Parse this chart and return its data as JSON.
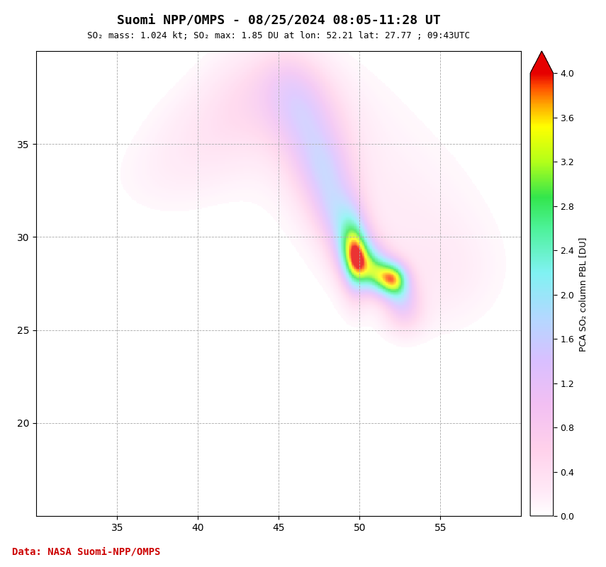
{
  "title": "Suomi NPP/OMPS - 08/25/2024 08:05-11:28 UT",
  "subtitle": "SO₂ mass: 1.024 kt; SO₂ max: 1.85 DU at lon: 52.21 lat: 27.77 ; 09:43UTC",
  "data_credit": "Data: NASA Suomi-NPP/OMPS",
  "lon_min": 30,
  "lon_max": 60,
  "lat_min": 15,
  "lat_max": 40,
  "lon_ticks": [
    35,
    40,
    45,
    50,
    55
  ],
  "lat_ticks": [
    20,
    25,
    30,
    35
  ],
  "cbar_label": "PCA SO₂ column PBL [DU]",
  "cbar_min": 0.0,
  "cbar_max": 4.0,
  "cbar_ticks": [
    0.0,
    0.4,
    0.8,
    1.2,
    1.6,
    2.0,
    2.4,
    2.8,
    3.2,
    3.6,
    4.0
  ],
  "land_color": "#ffffff",
  "ocean_color": "#ffffff",
  "coast_color": "#000000",
  "border_color": "#000000",
  "grid_color": "#aaaaaa",
  "background_color": "#ffffff",
  "title_fontsize": 13,
  "subtitle_fontsize": 9,
  "credit_color": "#cc0000",
  "so2_peak_lon": 52.21,
  "so2_peak_lat": 27.77,
  "so2_max": 1.85,
  "plume_blobs": [
    {
      "lon": 45.5,
      "lat": 39.0,
      "slon": 1.2,
      "slat": 1.0,
      "amp": 0.25
    },
    {
      "lon": 46.0,
      "lat": 38.0,
      "slon": 1.5,
      "slat": 1.2,
      "amp": 0.28
    },
    {
      "lon": 46.2,
      "lat": 37.0,
      "slon": 1.4,
      "slat": 1.3,
      "amp": 0.32
    },
    {
      "lon": 46.5,
      "lat": 36.5,
      "slon": 1.5,
      "slat": 1.5,
      "amp": 0.35
    },
    {
      "lon": 47.0,
      "lat": 35.5,
      "slon": 1.5,
      "slat": 1.5,
      "amp": 0.4
    },
    {
      "lon": 47.5,
      "lat": 34.5,
      "slon": 1.3,
      "slat": 1.3,
      "amp": 0.45
    },
    {
      "lon": 47.8,
      "lat": 33.5,
      "slon": 1.2,
      "slat": 1.2,
      "amp": 0.5
    },
    {
      "lon": 48.2,
      "lat": 32.5,
      "slon": 1.2,
      "slat": 1.2,
      "amp": 0.55
    },
    {
      "lon": 48.5,
      "lat": 31.5,
      "slon": 1.0,
      "slat": 1.0,
      "amp": 0.6
    },
    {
      "lon": 49.0,
      "lat": 30.5,
      "slon": 1.0,
      "slat": 1.0,
      "amp": 0.65
    },
    {
      "lon": 49.5,
      "lat": 29.5,
      "slon": 0.9,
      "slat": 1.0,
      "amp": 0.75
    },
    {
      "lon": 50.0,
      "lat": 29.0,
      "slon": 0.9,
      "slat": 0.9,
      "amp": 0.8
    },
    {
      "lon": 50.5,
      "lat": 28.5,
      "slon": 0.8,
      "slat": 0.8,
      "amp": 0.9
    },
    {
      "lon": 51.0,
      "lat": 28.0,
      "slon": 0.8,
      "slat": 0.8,
      "amp": 1.0
    },
    {
      "lon": 51.5,
      "lat": 27.8,
      "slon": 0.7,
      "slat": 0.7,
      "amp": 1.2
    },
    {
      "lon": 52.21,
      "lat": 27.77,
      "slon": 0.6,
      "slat": 0.6,
      "amp": 1.85
    },
    {
      "lon": 52.5,
      "lat": 27.0,
      "slon": 0.7,
      "slat": 0.7,
      "amp": 0.9
    },
    {
      "lon": 52.8,
      "lat": 26.0,
      "slon": 0.8,
      "slat": 0.8,
      "amp": 0.7
    },
    {
      "lon": 49.5,
      "lat": 29.5,
      "slon": 0.6,
      "slat": 1.5,
      "amp": 1.0
    },
    {
      "lon": 49.8,
      "lat": 28.5,
      "slon": 0.5,
      "slat": 1.2,
      "amp": 1.2
    },
    {
      "lon": 47.0,
      "lat": 36.0,
      "slon": 3.0,
      "slat": 2.5,
      "amp": 0.18
    },
    {
      "lon": 50.0,
      "lat": 33.0,
      "slon": 4.0,
      "slat": 3.5,
      "amp": 0.12
    },
    {
      "lon": 53.0,
      "lat": 30.0,
      "slon": 3.5,
      "slat": 3.0,
      "amp": 0.15
    },
    {
      "lon": 55.0,
      "lat": 28.0,
      "slon": 2.5,
      "slat": 2.0,
      "amp": 0.18
    },
    {
      "lon": 44.0,
      "lat": 38.5,
      "slon": 2.0,
      "slat": 1.5,
      "amp": 0.22
    },
    {
      "lon": 43.0,
      "lat": 37.5,
      "slon": 2.0,
      "slat": 1.5,
      "amp": 0.2
    },
    {
      "lon": 42.0,
      "lat": 36.5,
      "slon": 2.5,
      "slat": 1.5,
      "amp": 0.16
    },
    {
      "lon": 41.0,
      "lat": 35.5,
      "slon": 2.5,
      "slat": 1.5,
      "amp": 0.14
    },
    {
      "lon": 40.0,
      "lat": 34.5,
      "slon": 2.5,
      "slat": 1.5,
      "amp": 0.12
    },
    {
      "lon": 38.0,
      "lat": 33.0,
      "slon": 2.5,
      "slat": 1.5,
      "amp": 0.12
    }
  ]
}
